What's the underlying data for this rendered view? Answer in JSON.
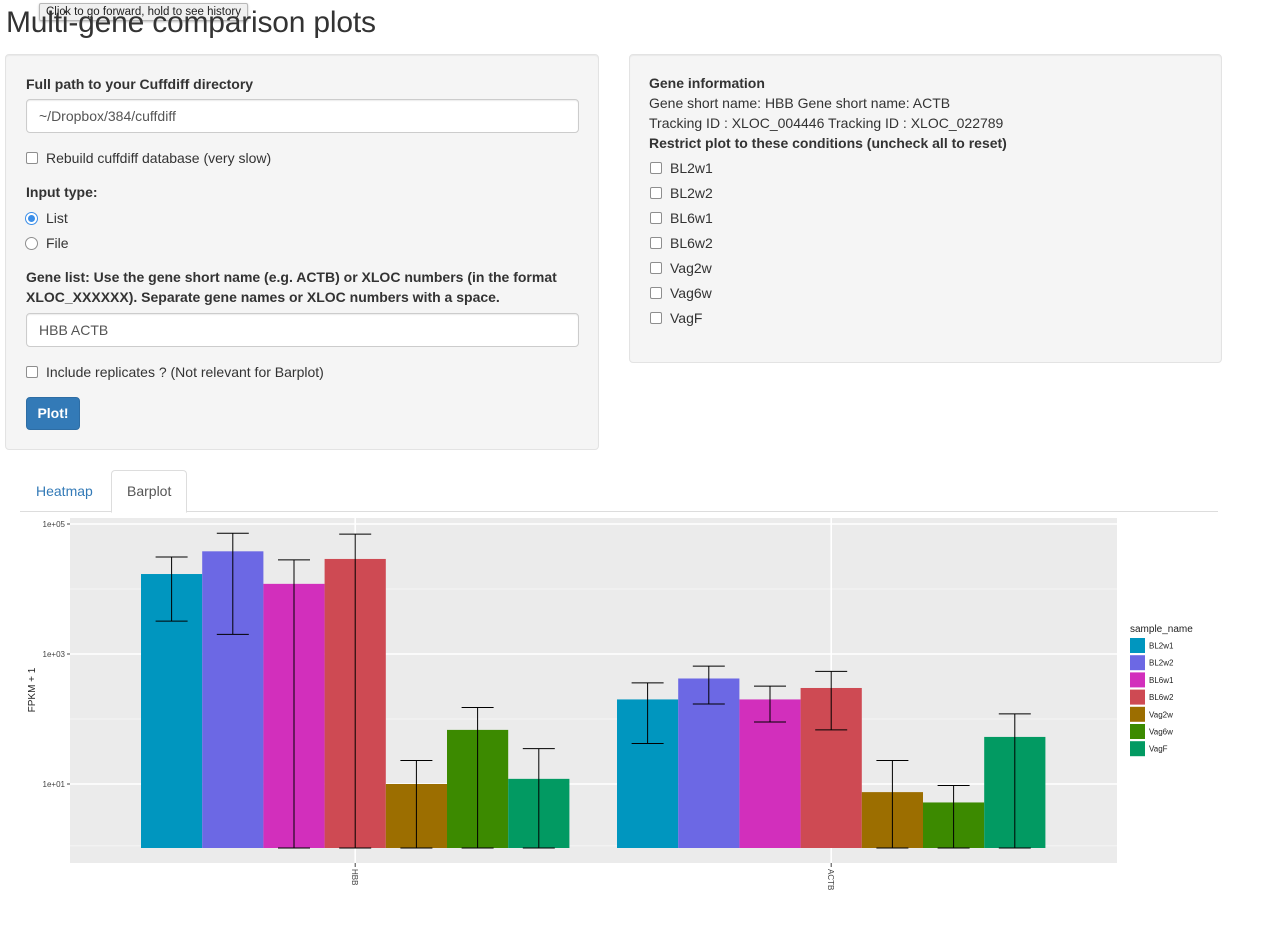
{
  "tooltip": "Click to go forward, hold to see history",
  "title": "Multi-gene comparison plots",
  "form": {
    "dir_label": "Full path to your Cuffdiff directory",
    "dir_value": "~/Dropbox/384/cuffdiff",
    "rebuild_label": "Rebuild cuffdiff database (very slow)",
    "input_type_label": "Input type:",
    "input_types": [
      {
        "label": "List",
        "selected": true
      },
      {
        "label": "File",
        "selected": false
      }
    ],
    "gene_list_label_line1": "Gene list: Use the gene short name (e.g. ACTB) or XLOC numbers (in the format",
    "gene_list_label_line2": "XLOC_XXXXXX). Separate gene names or XLOC numbers with a space.",
    "gene_list_value": "HBB ACTB",
    "replicates_label": "Include replicates ? (Not relevant for Barplot)",
    "plot_button": "Plot!"
  },
  "gene_info": {
    "heading": "Gene information",
    "short_names": "Gene short name: HBB Gene short name: ACTB",
    "tracking_ids": "Tracking ID : XLOC_004446 Tracking ID : XLOC_022789",
    "restrict_label": "Restrict plot to these conditions (uncheck all to reset)",
    "conditions": [
      "BL2w1",
      "BL2w2",
      "BL6w1",
      "BL6w2",
      "Vag2w",
      "Vag6w",
      "VagF"
    ]
  },
  "tabs": [
    {
      "label": "Heatmap",
      "active": false
    },
    {
      "label": "Barplot",
      "active": true
    }
  ],
  "chart_data": {
    "type": "bar",
    "scale": "log10",
    "categories": [
      "HBB",
      "ACTB"
    ],
    "ylabel": "FPKM + 1",
    "xlabel": "",
    "yticks": [
      {
        "value": 10,
        "label": "1e+01"
      },
      {
        "value": 1000,
        "label": "1e+03"
      },
      {
        "value": 100000,
        "label": "1e+05"
      }
    ],
    "ylim": [
      0.8,
      120000
    ],
    "legend_title": "sample_name",
    "legend_position": "right",
    "grid": true,
    "series": [
      {
        "name": "BL2w1",
        "color": "#0096BF",
        "values": [
          17000,
          200
        ],
        "err_low": [
          3200,
          42
        ],
        "err_high": [
          31000,
          360
        ]
      },
      {
        "name": "BL2w2",
        "color": "#6C68E4",
        "values": [
          38000,
          420
        ],
        "err_low": [
          2000,
          170
        ],
        "err_high": [
          72000,
          650
        ]
      },
      {
        "name": "BL6w1",
        "color": "#D22FBC",
        "values": [
          12000,
          200
        ],
        "err_low": [
          1,
          90
        ],
        "err_high": [
          28000,
          320
        ]
      },
      {
        "name": "BL6w2",
        "color": "#CE4A53",
        "values": [
          29000,
          300
        ],
        "err_low": [
          1,
          68
        ],
        "err_high": [
          70000,
          540
        ]
      },
      {
        "name": "Vag2w",
        "color": "#9C6E00",
        "values": [
          10,
          7.5
        ],
        "err_low": [
          1,
          1
        ],
        "err_high": [
          23,
          23
        ]
      },
      {
        "name": "Vag6w",
        "color": "#3C8A00",
        "values": [
          68,
          5.2
        ],
        "err_low": [
          1,
          1
        ],
        "err_high": [
          150,
          9.5
        ]
      },
      {
        "name": "VagF",
        "color": "#029A62",
        "values": [
          12,
          53
        ],
        "err_low": [
          1,
          1
        ],
        "err_high": [
          35,
          120
        ]
      }
    ]
  }
}
